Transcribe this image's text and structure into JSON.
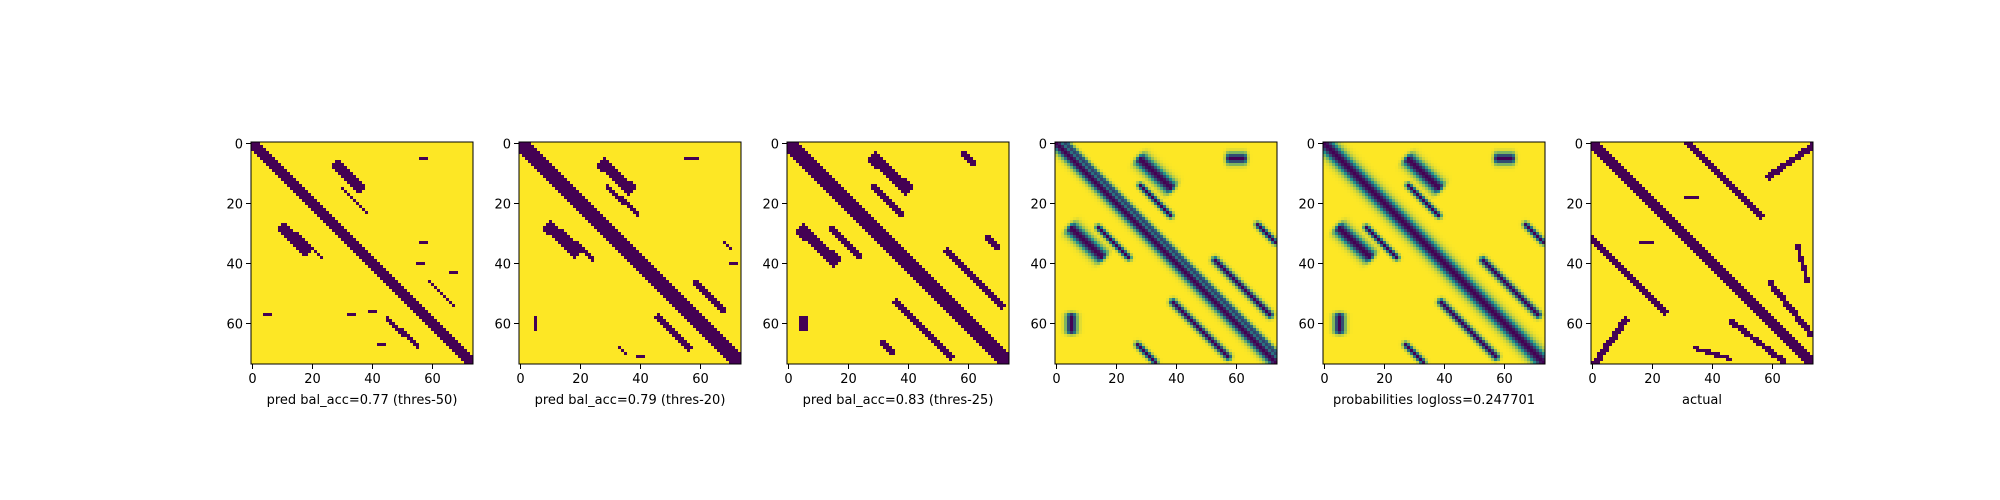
{
  "figure": {
    "colormap": "viridis",
    "colors": {
      "low": "#440154",
      "mid": "#21918c",
      "high": "#fde725"
    }
  },
  "chart_data": [
    {
      "type": "heatmap",
      "xlabel": "pred bal_acc=0.77 (thres-50)",
      "xlim": [
        0,
        73
      ],
      "ylim": [
        0,
        73
      ],
      "xticks": [
        0,
        20,
        40,
        60
      ],
      "yticks": [
        0,
        20,
        40,
        60
      ],
      "mode": "binary",
      "main_width": 2.2,
      "main_offset": 0,
      "blobs": [
        {
          "cx": 32,
          "cy": 11,
          "len": 12,
          "w": 2.0,
          "ang": -0.75
        },
        {
          "cx": 14,
          "cy": 32,
          "len": 12,
          "w": 2.0,
          "ang": -0.75
        },
        {
          "cx": 34,
          "cy": 19,
          "len": 12,
          "w": 0.7,
          "ang": -0.78
        },
        {
          "cx": 19,
          "cy": 34,
          "len": 12,
          "w": 0.7,
          "ang": -0.78
        },
        {
          "cx": 63,
          "cy": 50,
          "len": 12,
          "w": 0.7,
          "ang": -0.78
        },
        {
          "cx": 50,
          "cy": 63,
          "len": 14,
          "w": 0.8,
          "ang": -0.78
        },
        {
          "cx": 57,
          "cy": 33,
          "len": 1,
          "w": 0.6,
          "ang": 0
        },
        {
          "cx": 33,
          "cy": 57,
          "len": 1,
          "w": 0.6,
          "ang": 0
        },
        {
          "cx": 56,
          "cy": 40,
          "len": 1,
          "w": 0.6,
          "ang": 0
        },
        {
          "cx": 40,
          "cy": 56,
          "len": 1,
          "w": 0.6,
          "ang": 0
        },
        {
          "cx": 57,
          "cy": 5,
          "len": 1,
          "w": 0.6,
          "ang": 0
        },
        {
          "cx": 5,
          "cy": 57,
          "len": 1,
          "w": 0.6,
          "ang": 0
        },
        {
          "cx": 43,
          "cy": 67,
          "len": 1,
          "w": 0.6,
          "ang": 0
        },
        {
          "cx": 67,
          "cy": 43,
          "len": 1,
          "w": 0.6,
          "ang": 0
        }
      ]
    },
    {
      "type": "heatmap",
      "xlabel": "pred bal_acc=0.79 (thres-20)",
      "xlim": [
        0,
        73
      ],
      "ylim": [
        0,
        73
      ],
      "xticks": [
        0,
        20,
        40,
        60
      ],
      "yticks": [
        0,
        20,
        40,
        60
      ],
      "mode": "binary",
      "main_width": 2.6,
      "main_offset": 0,
      "blobs": [
        {
          "cx": 32,
          "cy": 11,
          "len": 13,
          "w": 2.2,
          "ang": -0.75
        },
        {
          "cx": 14,
          "cy": 32,
          "len": 13,
          "w": 2.2,
          "ang": -0.75
        },
        {
          "cx": 34,
          "cy": 19,
          "len": 13,
          "w": 0.8,
          "ang": -0.78
        },
        {
          "cx": 19,
          "cy": 34,
          "len": 13,
          "w": 0.8,
          "ang": -0.78
        },
        {
          "cx": 63,
          "cy": 51,
          "len": 13,
          "w": 0.9,
          "ang": -0.78
        },
        {
          "cx": 51,
          "cy": 63,
          "len": 15,
          "w": 1.0,
          "ang": -0.78
        },
        {
          "cx": 57,
          "cy": 5,
          "len": 3,
          "w": 0.8,
          "ang": 0
        },
        {
          "cx": 5,
          "cy": 60,
          "len": 3,
          "w": 0.8,
          "ang": 1.57
        },
        {
          "cx": 69,
          "cy": 34,
          "len": 3,
          "w": 0.7,
          "ang": -0.78
        },
        {
          "cx": 34,
          "cy": 69,
          "len": 3,
          "w": 0.7,
          "ang": -0.78
        },
        {
          "cx": 71,
          "cy": 40,
          "len": 1,
          "w": 0.6,
          "ang": 0
        },
        {
          "cx": 40,
          "cy": 71,
          "len": 1,
          "w": 0.6,
          "ang": 0
        }
      ]
    },
    {
      "type": "heatmap",
      "xlabel": "pred bal_acc=0.83 (thres-25)",
      "xlim": [
        0,
        73
      ],
      "ylim": [
        0,
        73
      ],
      "xticks": [
        0,
        20,
        40,
        60
      ],
      "yticks": [
        0,
        20,
        40,
        60
      ],
      "mode": "binary",
      "main_width": 2.6,
      "main_offset": 0,
      "blobs": [
        {
          "cx": 34,
          "cy": 10,
          "len": 16,
          "w": 2.2,
          "ang": -0.75
        },
        {
          "cx": 10,
          "cy": 34,
          "len": 16,
          "w": 2.2,
          "ang": -0.75
        },
        {
          "cx": 33,
          "cy": 19,
          "len": 14,
          "w": 0.9,
          "ang": -0.78
        },
        {
          "cx": 19,
          "cy": 33,
          "len": 14,
          "w": 0.9,
          "ang": -0.78
        },
        {
          "cx": 62,
          "cy": 45,
          "len": 26,
          "w": 1.0,
          "ang": -0.78
        },
        {
          "cx": 45,
          "cy": 62,
          "len": 26,
          "w": 1.0,
          "ang": -0.78
        },
        {
          "cx": 60,
          "cy": 5,
          "len": 4,
          "w": 1.0,
          "ang": -0.78
        },
        {
          "cx": 5,
          "cy": 60,
          "len": 4,
          "w": 1.4,
          "ang": 1.57
        },
        {
          "cx": 68,
          "cy": 33,
          "len": 6,
          "w": 0.9,
          "ang": -0.78
        },
        {
          "cx": 33,
          "cy": 68,
          "len": 6,
          "w": 0.9,
          "ang": -0.78
        }
      ]
    },
    {
      "type": "heatmap",
      "xlabel": "",
      "xlim": [
        0,
        73
      ],
      "ylim": [
        0,
        73
      ],
      "xticks": [
        0,
        20,
        40,
        60
      ],
      "yticks": [
        0,
        20,
        40,
        60
      ],
      "mode": "continuous",
      "main_width": 2.0,
      "main_offset": 1.5,
      "blobs": [
        {
          "cx": 33,
          "cy": 10,
          "len": 14,
          "w": 2.4,
          "ang": -0.75
        },
        {
          "cx": 10,
          "cy": 33,
          "len": 14,
          "w": 2.4,
          "ang": -0.75
        },
        {
          "cx": 33,
          "cy": 19,
          "len": 14,
          "w": 1.0,
          "ang": -0.78
        },
        {
          "cx": 19,
          "cy": 33,
          "len": 14,
          "w": 1.0,
          "ang": -0.78
        },
        {
          "cx": 62,
          "cy": 48,
          "len": 26,
          "w": 1.2,
          "ang": -0.78
        },
        {
          "cx": 48,
          "cy": 62,
          "len": 26,
          "w": 1.2,
          "ang": -0.78
        },
        {
          "cx": 60,
          "cy": 5,
          "len": 5,
          "w": 1.8,
          "ang": 0
        },
        {
          "cx": 5,
          "cy": 60,
          "len": 5,
          "w": 1.8,
          "ang": 1.57
        },
        {
          "cx": 70,
          "cy": 30,
          "len": 8,
          "w": 1.0,
          "ang": -0.78
        },
        {
          "cx": 30,
          "cy": 70,
          "len": 8,
          "w": 1.0,
          "ang": -0.78
        },
        {
          "cx": 67,
          "cy": 67,
          "len": 4,
          "w": 1.6,
          "ang": -0.78
        }
      ]
    },
    {
      "type": "heatmap",
      "xlabel": "probabilities logloss=0.247701",
      "xlim": [
        0,
        73
      ],
      "ylim": [
        0,
        73
      ],
      "xticks": [
        0,
        20,
        40,
        60
      ],
      "yticks": [
        0,
        20,
        40,
        60
      ],
      "mode": "continuous",
      "main_width": 2.6,
      "main_offset": 0,
      "blobs": [
        {
          "cx": 33,
          "cy": 10,
          "len": 14,
          "w": 2.4,
          "ang": -0.75
        },
        {
          "cx": 10,
          "cy": 33,
          "len": 14,
          "w": 2.4,
          "ang": -0.75
        },
        {
          "cx": 33,
          "cy": 19,
          "len": 14,
          "w": 1.0,
          "ang": -0.78
        },
        {
          "cx": 19,
          "cy": 33,
          "len": 14,
          "w": 1.0,
          "ang": -0.78
        },
        {
          "cx": 62,
          "cy": 48,
          "len": 26,
          "w": 1.2,
          "ang": -0.78
        },
        {
          "cx": 48,
          "cy": 62,
          "len": 26,
          "w": 1.2,
          "ang": -0.78
        },
        {
          "cx": 60,
          "cy": 5,
          "len": 5,
          "w": 1.8,
          "ang": 0
        },
        {
          "cx": 5,
          "cy": 60,
          "len": 5,
          "w": 1.8,
          "ang": 1.57
        },
        {
          "cx": 70,
          "cy": 30,
          "len": 8,
          "w": 1.0,
          "ang": -0.78
        },
        {
          "cx": 30,
          "cy": 70,
          "len": 8,
          "w": 1.0,
          "ang": -0.78
        }
      ]
    },
    {
      "type": "heatmap",
      "xlabel": "actual",
      "xlim": [
        0,
        73
      ],
      "ylim": [
        0,
        73
      ],
      "xticks": [
        0,
        20,
        40,
        60
      ],
      "yticks": [
        0,
        20,
        40,
        60
      ],
      "mode": "binary",
      "main_width": 2.2,
      "main_offset": 0,
      "blobs": [
        {
          "cx": 44,
          "cy": 12,
          "len": 34,
          "w": 1.3,
          "ang": -0.78
        },
        {
          "cx": 12,
          "cy": 44,
          "len": 34,
          "w": 1.3,
          "ang": -0.78
        },
        {
          "cx": 66,
          "cy": 6,
          "len": 18,
          "w": 1.2,
          "ang": 0.6
        },
        {
          "cx": 6,
          "cy": 66,
          "len": 18,
          "w": 1.2,
          "ang": 0.95
        },
        {
          "cx": 66,
          "cy": 55,
          "len": 22,
          "w": 1.1,
          "ang": -0.9
        },
        {
          "cx": 55,
          "cy": 66,
          "len": 22,
          "w": 1.1,
          "ang": -0.65
        },
        {
          "cx": 40,
          "cy": 70,
          "len": 12,
          "w": 0.8,
          "ang": -0.3
        },
        {
          "cx": 70,
          "cy": 40,
          "len": 12,
          "w": 0.8,
          "ang": -1.3
        },
        {
          "cx": 33,
          "cy": 18,
          "len": 3,
          "w": 0.7,
          "ang": 0
        },
        {
          "cx": 18,
          "cy": 33,
          "len": 3,
          "w": 0.7,
          "ang": 0
        }
      ]
    }
  ]
}
